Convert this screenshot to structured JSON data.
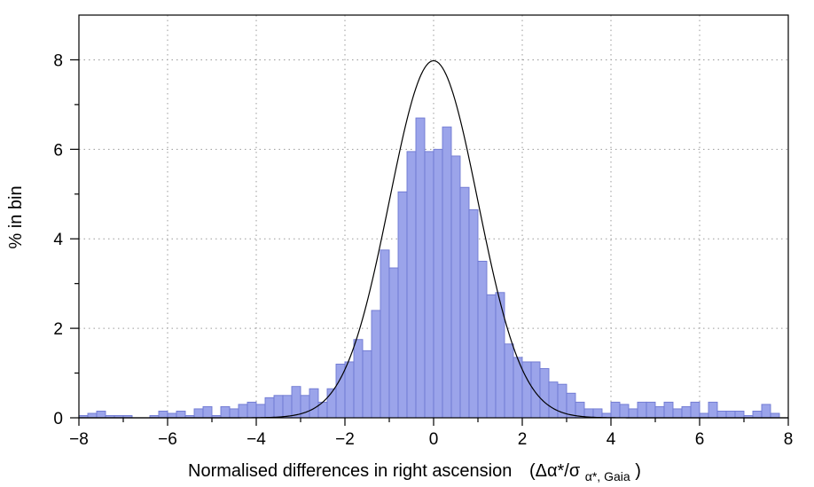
{
  "chart_data": {
    "type": "bar",
    "subtype": "histogram",
    "bin_width": 0.2,
    "xlabel": "Normalised differences in right ascension",
    "xlabel_formula": {
      "main": "(Δα*/σ",
      "subscript": "α*, Gaia",
      "close": ")"
    },
    "ylabel": "% in bin",
    "xlim": [
      -8,
      8
    ],
    "ylim": [
      0,
      9
    ],
    "x_ticks": [
      "−8",
      "−6",
      "−4",
      "−2",
      "0",
      "2",
      "4",
      "6",
      "8"
    ],
    "x_tick_values": [
      -8,
      -6,
      -4,
      -2,
      0,
      2,
      4,
      6,
      8
    ],
    "y_ticks": [
      "0",
      "2",
      "4",
      "6",
      "8"
    ],
    "y_tick_values": [
      0,
      2,
      4,
      6,
      8
    ],
    "grid": "dotted",
    "bar_color": "#9ba4ea",
    "bar_edge_color": "#6e78d2",
    "curve_color": "#000000",
    "overlay_curve": {
      "type": "gaussian",
      "mean": 0,
      "sigma": 1,
      "peak_percent": 7.98
    },
    "bin_left_edges": [
      -8.0,
      -7.8,
      -7.6,
      -7.4,
      -7.2,
      -7.0,
      -6.8,
      -6.6,
      -6.4,
      -6.2,
      -6.0,
      -5.8,
      -5.6,
      -5.4,
      -5.2,
      -5.0,
      -4.8,
      -4.6,
      -4.4,
      -4.2,
      -4.0,
      -3.8,
      -3.6,
      -3.4,
      -3.2,
      -3.0,
      -2.8,
      -2.6,
      -2.4,
      -2.2,
      -2.0,
      -1.8,
      -1.6,
      -1.4,
      -1.2,
      -1.0,
      -0.8,
      -0.6,
      -0.4,
      -0.2,
      0.0,
      0.2,
      0.4,
      0.6,
      0.8,
      1.0,
      1.2,
      1.4,
      1.6,
      1.8,
      2.0,
      2.2,
      2.4,
      2.6,
      2.8,
      3.0,
      3.2,
      3.4,
      3.6,
      3.8,
      4.0,
      4.2,
      4.4,
      4.6,
      4.8,
      5.0,
      5.2,
      5.4,
      5.6,
      5.8,
      6.0,
      6.2,
      6.4,
      6.6,
      6.8,
      7.0,
      7.2,
      7.4,
      7.6,
      7.8
    ],
    "values": [
      0.05,
      0.1,
      0.15,
      0.05,
      0.05,
      0.05,
      0,
      0,
      0.05,
      0.15,
      0.1,
      0.15,
      0.05,
      0.2,
      0.25,
      0.05,
      0.25,
      0.2,
      0.3,
      0.35,
      0.3,
      0.45,
      0.5,
      0.5,
      0.7,
      0.5,
      0.65,
      0.35,
      0.65,
      1.2,
      1.25,
      1.75,
      1.5,
      2.4,
      3.75,
      3.35,
      5.05,
      5.95,
      6.7,
      5.95,
      6.0,
      6.5,
      5.85,
      5.15,
      4.65,
      3.5,
      2.75,
      2.8,
      1.65,
      1.35,
      1.25,
      1.25,
      1.1,
      0.8,
      0.75,
      0.55,
      0.35,
      0.2,
      0.2,
      0.1,
      0.35,
      0.3,
      0.2,
      0.35,
      0.35,
      0.25,
      0.35,
      0.2,
      0.25,
      0.35,
      0.1,
      0.35,
      0.15,
      0.15,
      0.15,
      0.05,
      0.15,
      0.3,
      0.1,
      0.0
    ]
  }
}
